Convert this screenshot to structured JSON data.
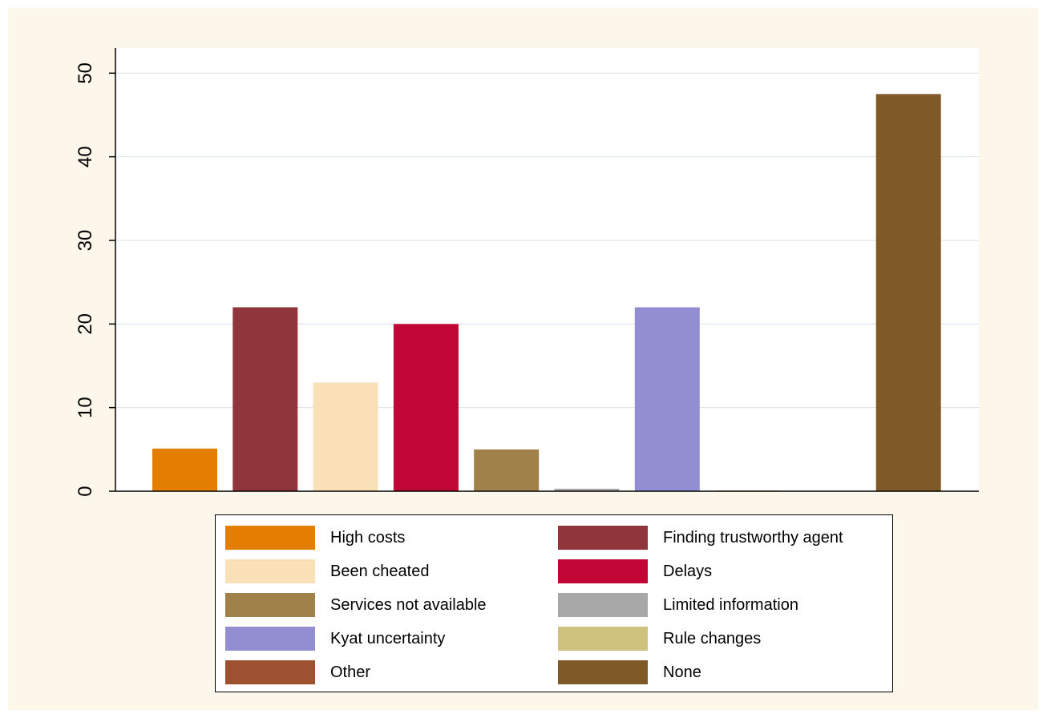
{
  "chart_data": {
    "type": "bar",
    "title": "",
    "xlabel": "",
    "ylabel": "",
    "ylim": [
      0,
      53
    ],
    "yticks": [
      "0",
      "10",
      "20",
      "30",
      "40",
      "50"
    ],
    "grid": true,
    "legend_position": "bottom",
    "series": [
      {
        "name": "High costs",
        "value": 5.1,
        "color": "#e37e00"
      },
      {
        "name": "Finding trustworthy agent",
        "value": 22,
        "color": "#90353b"
      },
      {
        "name": "Been cheated",
        "value": 13,
        "color": "#f9e0b7"
      },
      {
        "name": "Delays",
        "value": 20,
        "color": "#c10534"
      },
      {
        "name": "Services not available",
        "value": 5,
        "color": "#a0814a"
      },
      {
        "name": "Limited information",
        "value": 0.3,
        "color": "#a8a8a8"
      },
      {
        "name": "Kyat uncertainty",
        "value": 22,
        "color": "#938dd2"
      },
      {
        "name": "Rule changes",
        "value": 0.1,
        "color": "#cfc17e"
      },
      {
        "name": "Other",
        "value": 0,
        "color": "#9e5130"
      },
      {
        "name": "None",
        "value": 47.5,
        "color": "#7f5a26"
      }
    ]
  },
  "colors": {
    "background": "#fdf6ea",
    "plot_area": "#ffffff",
    "grid": "#d9e0e5"
  }
}
